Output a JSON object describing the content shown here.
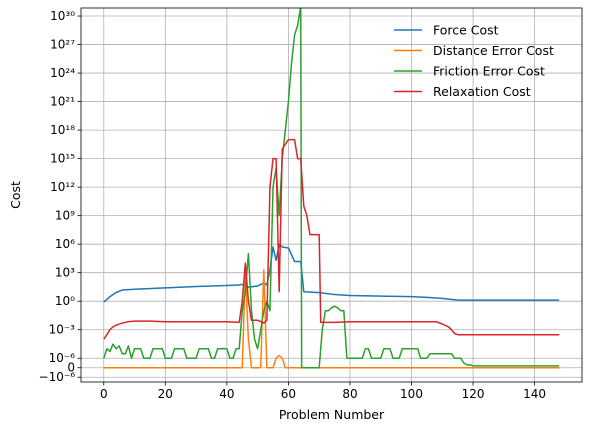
{
  "chart_data": {
    "type": "line",
    "xlabel": "Problem Number",
    "ylabel": "Cost",
    "yscale": "symlog",
    "linthresh": 1e-06,
    "xlim": [
      -7.4,
      155.4
    ],
    "grid": true,
    "legend_position": "top-right",
    "x_ticks": [
      0,
      20,
      40,
      60,
      80,
      100,
      120,
      140
    ],
    "y_ticks": [
      {
        "label": "10³⁰",
        "value": 1e+30
      },
      {
        "label": "10²⁷",
        "value": 1e+27
      },
      {
        "label": "10²⁴",
        "value": 1e+24
      },
      {
        "label": "10²¹",
        "value": 1e+21
      },
      {
        "label": "10¹⁸",
        "value": 1e+18
      },
      {
        "label": "10¹⁵",
        "value": 1000000000000000.0
      },
      {
        "label": "10¹²",
        "value": 1000000000000.0
      },
      {
        "label": "10⁹",
        "value": 1000000000.0
      },
      {
        "label": "10⁶",
        "value": 1000000.0
      },
      {
        "label": "10³",
        "value": 1000.0
      },
      {
        "label": "10⁰",
        "value": 1
      },
      {
        "label": "10⁻³",
        "value": 0.001
      },
      {
        "label": "10⁻⁶",
        "value": 1e-06
      },
      {
        "label": "0",
        "value": 0
      },
      {
        "label": "−10⁻⁶",
        "value": -1e-06
      }
    ],
    "series": [
      {
        "name": "Force Cost",
        "color": "#1f77b4",
        "points": [
          [
            0,
            0.8
          ],
          [
            2,
            3
          ],
          [
            4,
            8
          ],
          [
            6,
            15
          ],
          [
            10,
            18
          ],
          [
            20,
            25
          ],
          [
            30,
            35
          ],
          [
            40,
            45
          ],
          [
            44,
            50
          ],
          [
            45,
            60
          ],
          [
            46,
            40
          ],
          [
            47,
            30
          ],
          [
            50,
            40
          ],
          [
            52,
            80
          ],
          [
            53,
            50
          ],
          [
            54,
            2000
          ],
          [
            55,
            500000
          ],
          [
            56,
            20000
          ],
          [
            57,
            1000000
          ],
          [
            58,
            500000
          ],
          [
            60,
            400000
          ],
          [
            62,
            15000
          ],
          [
            64,
            15000
          ],
          [
            65,
            10
          ],
          [
            70,
            8
          ],
          [
            75,
            5
          ],
          [
            80,
            4
          ],
          [
            100,
            3
          ],
          [
            105,
            2.5
          ],
          [
            110,
            2
          ],
          [
            115,
            1.3
          ],
          [
            120,
            1.3
          ],
          [
            148,
            1.3
          ]
        ]
      },
      {
        "name": "Distance Error Cost",
        "color": "#ff7f0e",
        "points": [
          [
            0,
            0
          ],
          [
            45,
            0
          ],
          [
            46,
            1000
          ],
          [
            47,
            0.0001
          ],
          [
            48,
            0
          ],
          [
            50,
            0
          ],
          [
            51,
            0
          ],
          [
            52,
            2000
          ],
          [
            53,
            0
          ],
          [
            55,
            0
          ],
          [
            56,
            1e-06
          ],
          [
            57,
            2e-06
          ],
          [
            58,
            1e-06
          ],
          [
            59,
            0
          ],
          [
            148,
            0
          ]
        ]
      },
      {
        "name": "Friction Error Cost",
        "color": "#2ca02c",
        "points": [
          [
            0,
            1e-06
          ],
          [
            1,
            1e-05
          ],
          [
            2,
            5e-06
          ],
          [
            3,
            3e-05
          ],
          [
            4,
            1e-05
          ],
          [
            5,
            2e-05
          ],
          [
            6,
            3e-06
          ],
          [
            7,
            3e-06
          ],
          [
            8,
            2e-05
          ],
          [
            9,
            1e-06
          ],
          [
            10,
            1e-05
          ],
          [
            11,
            1e-05
          ],
          [
            12,
            1e-05
          ],
          [
            13,
            1e-06
          ],
          [
            14,
            1e-06
          ],
          [
            15,
            1e-06
          ],
          [
            16,
            1e-05
          ],
          [
            17,
            1e-05
          ],
          [
            18,
            1e-05
          ],
          [
            19,
            1e-05
          ],
          [
            20,
            1e-06
          ],
          [
            21,
            1e-06
          ],
          [
            22,
            1e-06
          ],
          [
            23,
            1e-05
          ],
          [
            24,
            1e-05
          ],
          [
            25,
            1e-05
          ],
          [
            26,
            1e-05
          ],
          [
            27,
            1e-06
          ],
          [
            28,
            1e-06
          ],
          [
            29,
            1e-06
          ],
          [
            30,
            1e-06
          ],
          [
            31,
            1e-05
          ],
          [
            32,
            1e-05
          ],
          [
            33,
            1e-05
          ],
          [
            34,
            1e-05
          ],
          [
            35,
            1e-06
          ],
          [
            36,
            1e-06
          ],
          [
            37,
            1e-05
          ],
          [
            38,
            1e-05
          ],
          [
            39,
            1e-05
          ],
          [
            40,
            1e-05
          ],
          [
            41,
            1e-06
          ],
          [
            42,
            1e-06
          ],
          [
            43,
            1e-05
          ],
          [
            44,
            1e-05
          ],
          [
            45,
            0.1
          ],
          [
            46,
            10
          ],
          [
            47,
            100000
          ],
          [
            48,
            0.1
          ],
          [
            49,
            0.0001
          ],
          [
            50,
            1e-05
          ],
          [
            51,
            0.001
          ],
          [
            52,
            0.1
          ],
          [
            53,
            1
          ],
          [
            54,
            0.1
          ],
          [
            55,
            1000000000000.0
          ],
          [
            56,
            100000000000000.0
          ],
          [
            57,
            1000000000.0
          ],
          [
            58,
            1000000000000000.0
          ],
          [
            59,
            1e+18
          ],
          [
            60,
            1e+21
          ],
          [
            61,
            1e+25
          ],
          [
            62,
            1e+28
          ],
          [
            63,
            1e+29
          ],
          [
            64,
            1e+31
          ],
          [
            64.3,
            0
          ],
          [
            70,
            0
          ],
          [
            71,
            0.001
          ],
          [
            72,
            0.1
          ],
          [
            73,
            0.1
          ],
          [
            74,
            0.2
          ],
          [
            75,
            0.3
          ],
          [
            76,
            0.2
          ],
          [
            77,
            0.1
          ],
          [
            78,
            0.1
          ],
          [
            79,
            1e-06
          ],
          [
            80,
            1e-06
          ],
          [
            81,
            1e-06
          ],
          [
            82,
            1e-06
          ],
          [
            83,
            1e-06
          ],
          [
            84,
            1e-06
          ],
          [
            85,
            1e-05
          ],
          [
            86,
            1e-05
          ],
          [
            87,
            1e-06
          ],
          [
            88,
            1e-06
          ],
          [
            89,
            1e-06
          ],
          [
            90,
            1e-06
          ],
          [
            91,
            1e-05
          ],
          [
            92,
            1e-05
          ],
          [
            93,
            1e-05
          ],
          [
            94,
            1e-06
          ],
          [
            95,
            1e-06
          ],
          [
            96,
            1e-06
          ],
          [
            97,
            1e-05
          ],
          [
            98,
            1e-05
          ],
          [
            99,
            1e-05
          ],
          [
            100,
            1e-05
          ],
          [
            101,
            1e-05
          ],
          [
            102,
            1e-05
          ],
          [
            103,
            1e-06
          ],
          [
            104,
            1e-06
          ],
          [
            105,
            1e-06
          ],
          [
            106,
            3e-06
          ],
          [
            107,
            3e-06
          ],
          [
            108,
            3e-06
          ],
          [
            109,
            3e-06
          ],
          [
            110,
            3e-06
          ],
          [
            111,
            3e-06
          ],
          [
            112,
            3e-06
          ],
          [
            113,
            3e-06
          ],
          [
            114,
            1e-06
          ],
          [
            115,
            1e-06
          ],
          [
            116,
            1e-06
          ],
          [
            117,
            5e-07
          ],
          [
            118,
            3e-07
          ],
          [
            119,
            3e-07
          ],
          [
            120,
            2e-07
          ],
          [
            148,
            2e-07
          ]
        ]
      },
      {
        "name": "Relaxation Cost",
        "color": "#d62728",
        "points": [
          [
            0,
            0.0001
          ],
          [
            1,
            0.0003
          ],
          [
            2,
            0.001
          ],
          [
            3,
            0.002
          ],
          [
            4,
            0.003
          ],
          [
            6,
            0.005
          ],
          [
            8,
            0.007
          ],
          [
            10,
            0.008
          ],
          [
            15,
            0.008
          ],
          [
            20,
            0.007
          ],
          [
            30,
            0.007
          ],
          [
            40,
            0.007
          ],
          [
            44,
            0.006
          ],
          [
            45,
            1
          ],
          [
            46,
            10000
          ],
          [
            47,
            1
          ],
          [
            48,
            0.01
          ],
          [
            50,
            0.01
          ],
          [
            52,
            0.005
          ],
          [
            53,
            0.01
          ],
          [
            54,
            1000000000000.0
          ],
          [
            55,
            1000000000000000.0
          ],
          [
            56,
            1000000000000000.0
          ],
          [
            57,
            10
          ],
          [
            58,
            1e+16
          ],
          [
            60,
            1e+17
          ],
          [
            62,
            1e+17
          ],
          [
            63,
            1000000000000000.0
          ],
          [
            64,
            1000000000000000.0
          ],
          [
            65,
            10000000000.0
          ],
          [
            66,
            1000000000.0
          ],
          [
            67,
            10000000.0
          ],
          [
            68,
            10000000.0
          ],
          [
            70,
            10000000.0
          ],
          [
            70.5,
            0.006
          ],
          [
            75,
            0.006
          ],
          [
            80,
            0.007
          ],
          [
            90,
            0.007
          ],
          [
            100,
            0.007
          ],
          [
            105,
            0.007
          ],
          [
            108,
            0.007
          ],
          [
            110,
            0.004
          ],
          [
            112,
            0.002
          ],
          [
            113,
            0.001
          ],
          [
            114,
            0.0004
          ],
          [
            115,
            0.0003
          ],
          [
            120,
            0.0003
          ],
          [
            148,
            0.0003
          ]
        ]
      }
    ]
  }
}
